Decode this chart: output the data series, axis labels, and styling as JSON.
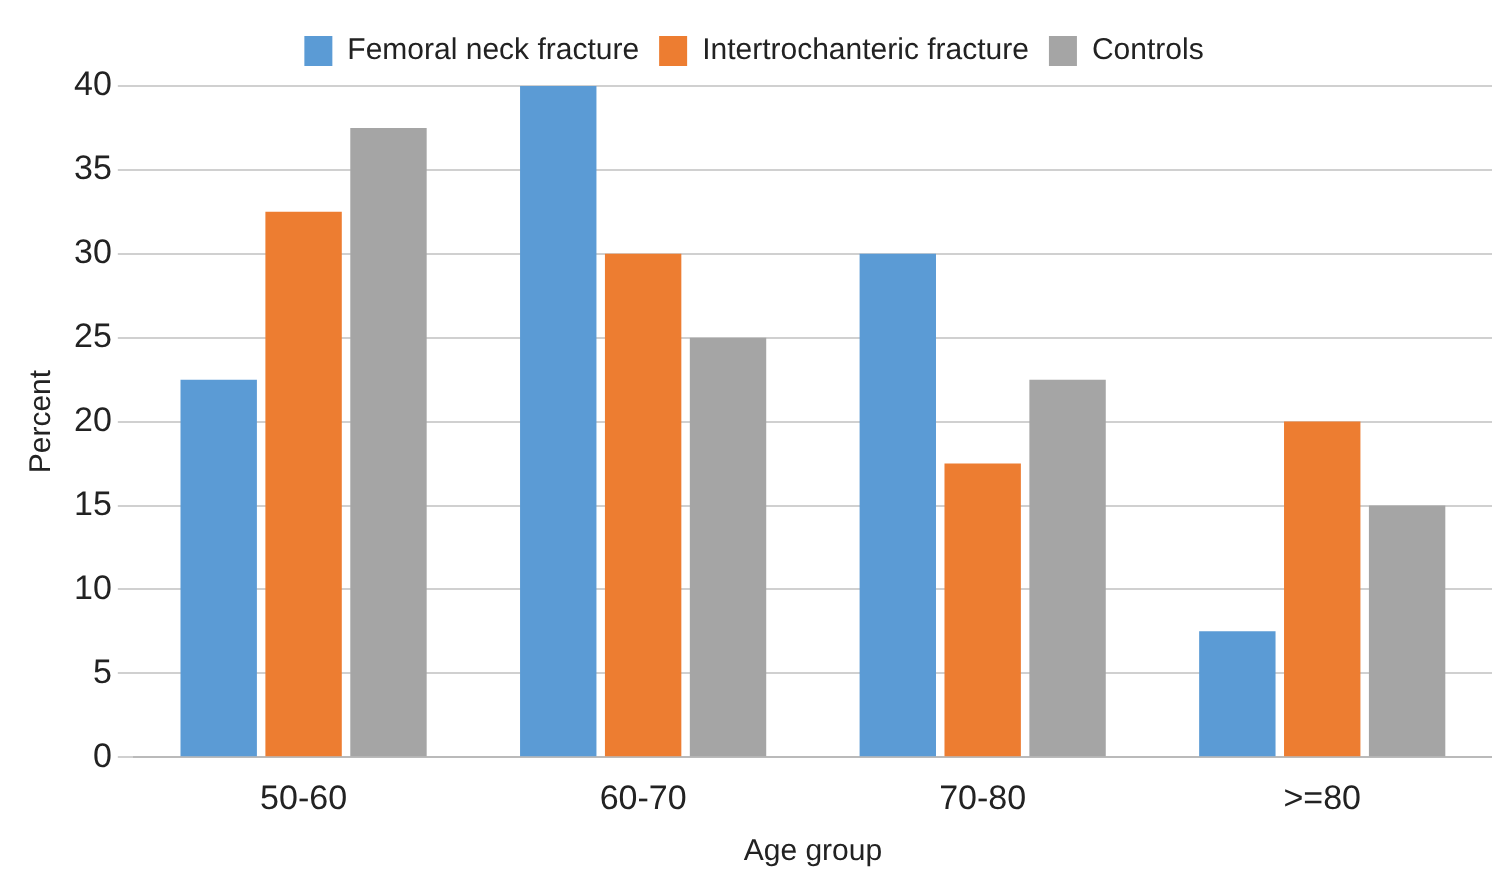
{
  "chart_data": {
    "type": "bar",
    "xlabel": "Age group",
    "ylabel": "Percent",
    "categories": [
      "50-60",
      "60-70",
      "70-80",
      ">=80"
    ],
    "series": [
      {
        "name": "Femoral neck fracture",
        "color": "#5b9bd5",
        "values": [
          22.5,
          40,
          30,
          7.5
        ]
      },
      {
        "name": "Intertrochanteric fracture",
        "color": "#ed7d31",
        "values": [
          32.5,
          30,
          17.5,
          20
        ]
      },
      {
        "name": "Controls",
        "color": "#a5a5a5",
        "values": [
          37.5,
          25,
          22.5,
          15
        ]
      }
    ],
    "ylim": [
      0,
      40
    ],
    "yticks": [
      0,
      5,
      10,
      15,
      20,
      25,
      30,
      35,
      40
    ],
    "grid": "y",
    "legend": "top"
  }
}
